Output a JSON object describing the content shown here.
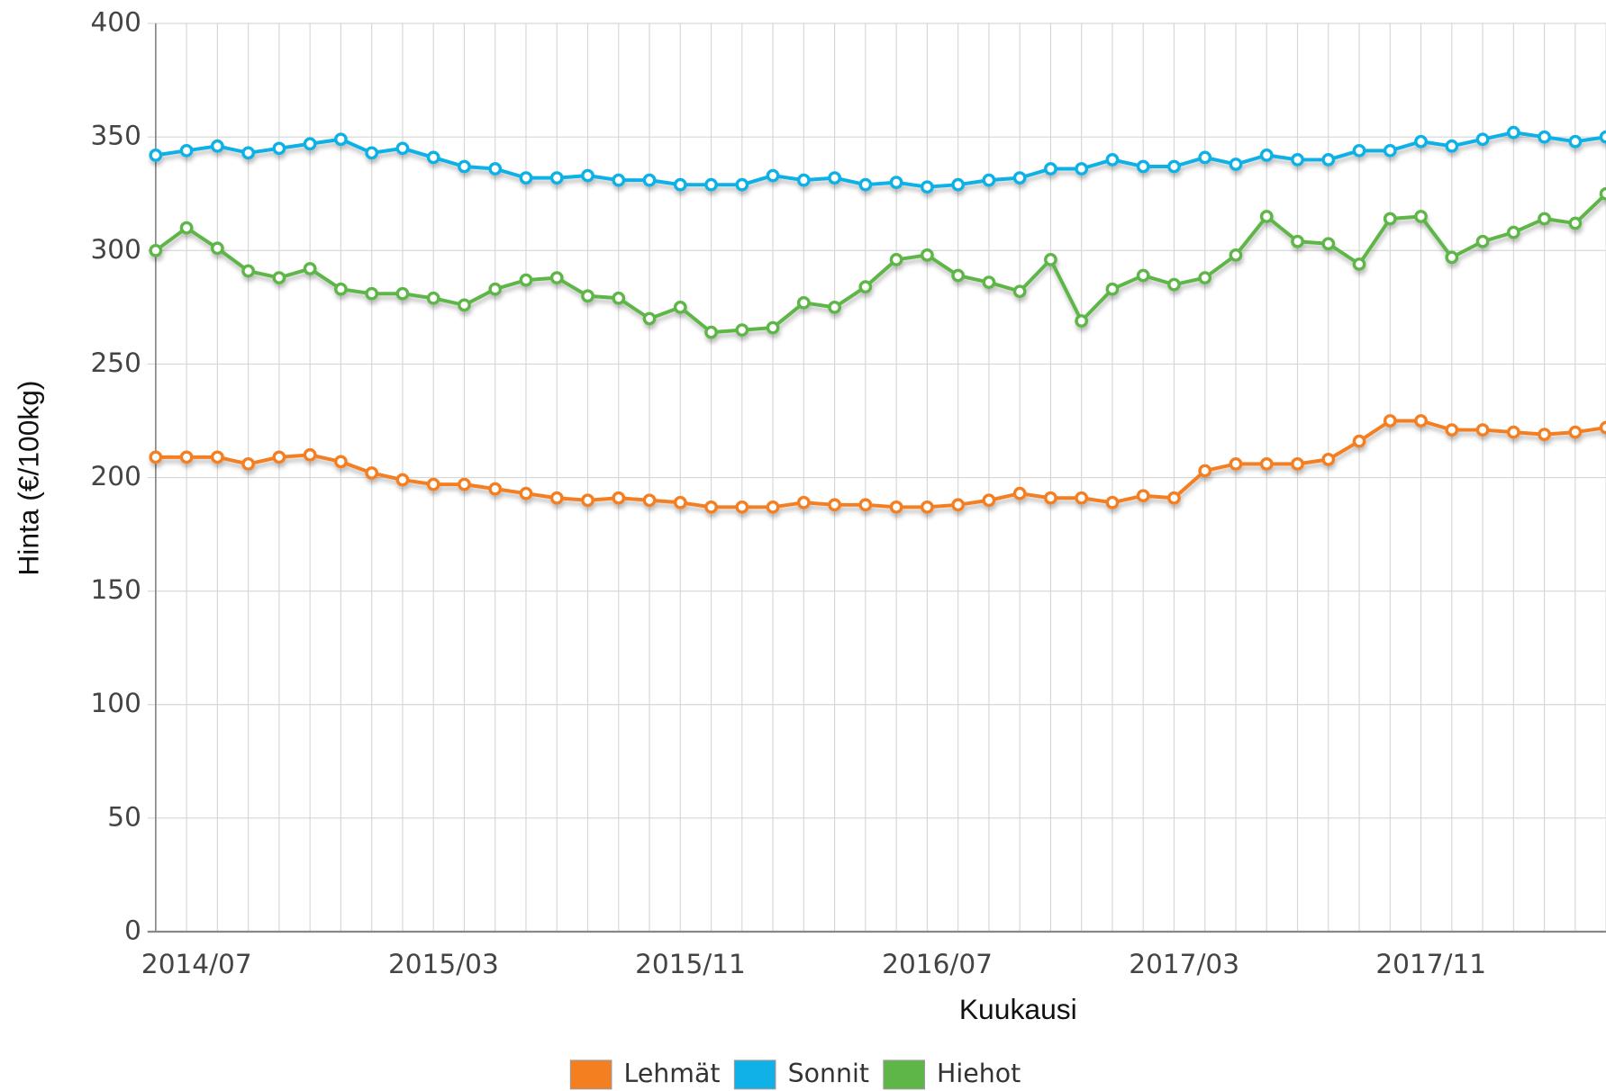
{
  "chart_data": {
    "type": "line",
    "xlabel": "Kuukausi",
    "ylabel": "Hinta (€/100kg)",
    "categories": [
      "2014/07",
      null,
      null,
      null,
      null,
      null,
      null,
      null,
      "2015/03",
      null,
      null,
      null,
      null,
      null,
      null,
      null,
      "2015/11",
      null,
      null,
      null,
      null,
      null,
      null,
      null,
      "2016/07",
      null,
      null,
      null,
      null,
      null,
      null,
      null,
      "2017/03",
      null,
      null,
      null,
      null,
      null,
      null,
      null,
      "2017/11",
      null,
      null,
      null,
      null,
      null,
      null,
      null
    ],
    "series": [
      {
        "name": "Lehmät",
        "color": "#f47f20",
        "values": [
          209,
          209,
          209,
          206,
          209,
          210,
          207,
          202,
          199,
          197,
          197,
          195,
          193,
          191,
          190,
          191,
          190,
          189,
          187,
          187,
          187,
          189,
          188,
          188,
          187,
          187,
          188,
          190,
          193,
          191,
          191,
          189,
          192,
          191,
          203,
          206,
          206,
          206,
          208,
          216,
          225,
          225,
          221,
          221,
          220,
          219,
          220,
          222
        ]
      },
      {
        "name": "Sonnit",
        "color": "#0fb1e6",
        "values": [
          342,
          344,
          346,
          343,
          345,
          347,
          349,
          343,
          345,
          341,
          337,
          336,
          332,
          332,
          333,
          331,
          331,
          329,
          329,
          329,
          333,
          331,
          332,
          329,
          330,
          328,
          329,
          331,
          332,
          336,
          336,
          340,
          337,
          337,
          341,
          338,
          342,
          340,
          340,
          344,
          344,
          348,
          346,
          349,
          352,
          350,
          348,
          350
        ]
      },
      {
        "name": "Hiehot",
        "color": "#5db646",
        "values": [
          300,
          310,
          301,
          291,
          288,
          292,
          283,
          281,
          281,
          279,
          276,
          283,
          287,
          288,
          280,
          279,
          270,
          275,
          264,
          265,
          266,
          277,
          275,
          284,
          296,
          298,
          289,
          286,
          282,
          296,
          269,
          283,
          289,
          285,
          288,
          298,
          315,
          304,
          303,
          294,
          314,
          315,
          297,
          304,
          308,
          314,
          312,
          325
        ]
      }
    ],
    "ylim": [
      0,
      400
    ],
    "yticks": [
      0,
      50,
      100,
      150,
      200,
      250,
      300,
      350,
      400
    ],
    "grid": true,
    "legend": "bottom"
  }
}
